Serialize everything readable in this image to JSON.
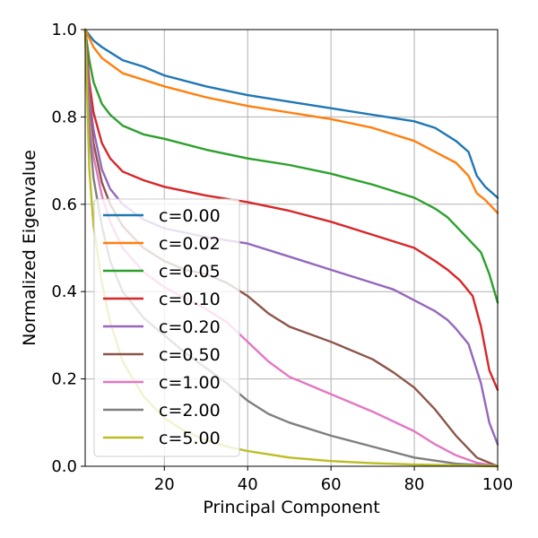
{
  "chart_data": {
    "type": "line",
    "xlabel": "Principal Component",
    "ylabel": "Normalized Eigenvalue",
    "xlim": [
      1,
      100
    ],
    "ylim": [
      0,
      1
    ],
    "xticks": [
      20,
      40,
      60,
      80,
      100
    ],
    "yticks": [
      0.0,
      0.2,
      0.4,
      0.6,
      0.8,
      1.0
    ],
    "xtick_labels": [
      "20",
      "40",
      "60",
      "80",
      "100"
    ],
    "ytick_labels": [
      "0.0",
      "0.2",
      "0.4",
      "0.6",
      "0.8",
      "1.0"
    ],
    "grid": true,
    "legend_position": "lower-left",
    "series": [
      {
        "name": "c=0.00",
        "color": "#1f77b4",
        "x": [
          1,
          3,
          5,
          10,
          15,
          20,
          30,
          40,
          50,
          60,
          70,
          80,
          85,
          90,
          93,
          95,
          97,
          100
        ],
        "y": [
          1.0,
          0.975,
          0.96,
          0.93,
          0.915,
          0.895,
          0.87,
          0.85,
          0.835,
          0.82,
          0.805,
          0.79,
          0.775,
          0.745,
          0.72,
          0.665,
          0.64,
          0.615
        ]
      },
      {
        "name": "c=0.02",
        "color": "#ff7f0e",
        "x": [
          1,
          3,
          5,
          10,
          15,
          20,
          30,
          40,
          50,
          60,
          70,
          80,
          85,
          90,
          93,
          95,
          97,
          100
        ],
        "y": [
          1.0,
          0.96,
          0.935,
          0.9,
          0.885,
          0.87,
          0.845,
          0.825,
          0.81,
          0.795,
          0.775,
          0.745,
          0.72,
          0.695,
          0.665,
          0.625,
          0.61,
          0.58
        ]
      },
      {
        "name": "c=0.05",
        "color": "#2ca02c",
        "x": [
          1,
          2,
          3,
          5,
          7,
          10,
          15,
          20,
          30,
          40,
          50,
          60,
          70,
          80,
          85,
          88,
          90,
          93,
          96,
          98,
          100
        ],
        "y": [
          1.0,
          0.93,
          0.88,
          0.83,
          0.805,
          0.78,
          0.76,
          0.75,
          0.725,
          0.705,
          0.69,
          0.67,
          0.645,
          0.615,
          0.59,
          0.57,
          0.55,
          0.52,
          0.49,
          0.44,
          0.375
        ]
      },
      {
        "name": "c=0.10",
        "color": "#d62728",
        "x": [
          1,
          2,
          3,
          5,
          7,
          10,
          15,
          20,
          30,
          40,
          50,
          60,
          70,
          80,
          85,
          88,
          91,
          94,
          96,
          98,
          100
        ],
        "y": [
          1.0,
          0.88,
          0.81,
          0.74,
          0.705,
          0.675,
          0.655,
          0.64,
          0.62,
          0.605,
          0.585,
          0.56,
          0.53,
          0.5,
          0.47,
          0.45,
          0.425,
          0.39,
          0.32,
          0.22,
          0.175
        ]
      },
      {
        "name": "c=0.20",
        "color": "#9467bd",
        "x": [
          1,
          2,
          3,
          5,
          7,
          10,
          15,
          20,
          25,
          30,
          40,
          50,
          60,
          70,
          75,
          80,
          85,
          88,
          90,
          93,
          96,
          98,
          100
        ],
        "y": [
          1.0,
          0.85,
          0.77,
          0.68,
          0.635,
          0.6,
          0.565,
          0.545,
          0.535,
          0.525,
          0.51,
          0.48,
          0.45,
          0.42,
          0.405,
          0.38,
          0.355,
          0.335,
          0.315,
          0.28,
          0.19,
          0.1,
          0.05
        ]
      },
      {
        "name": "c=0.50",
        "color": "#8c564b",
        "x": [
          1,
          2,
          3,
          5,
          7,
          10,
          15,
          20,
          25,
          30,
          35,
          40,
          45,
          50,
          60,
          70,
          75,
          80,
          85,
          90,
          95,
          100
        ],
        "y": [
          1.0,
          0.82,
          0.74,
          0.65,
          0.6,
          0.55,
          0.5,
          0.47,
          0.45,
          0.44,
          0.42,
          0.39,
          0.35,
          0.32,
          0.285,
          0.245,
          0.215,
          0.18,
          0.13,
          0.07,
          0.02,
          0.0
        ]
      },
      {
        "name": "c=1.00",
        "color": "#e377c2",
        "x": [
          1,
          2,
          3,
          5,
          7,
          10,
          15,
          20,
          25,
          30,
          35,
          40,
          45,
          50,
          55,
          60,
          70,
          80,
          85,
          90,
          95,
          100
        ],
        "y": [
          1.0,
          0.8,
          0.71,
          0.62,
          0.56,
          0.5,
          0.445,
          0.41,
          0.385,
          0.36,
          0.33,
          0.285,
          0.24,
          0.205,
          0.185,
          0.165,
          0.125,
          0.08,
          0.05,
          0.025,
          0.008,
          0.0
        ]
      },
      {
        "name": "c=2.00",
        "color": "#7f7f7f",
        "x": [
          1,
          2,
          3,
          5,
          7,
          10,
          15,
          20,
          25,
          30,
          35,
          40,
          45,
          50,
          60,
          70,
          80,
          90,
          100
        ],
        "y": [
          1.0,
          0.77,
          0.66,
          0.55,
          0.47,
          0.4,
          0.34,
          0.3,
          0.26,
          0.225,
          0.19,
          0.15,
          0.12,
          0.1,
          0.07,
          0.045,
          0.02,
          0.006,
          0.0
        ]
      },
      {
        "name": "c=5.00",
        "color": "#bcbd22",
        "x": [
          1,
          2,
          3,
          5,
          7,
          10,
          15,
          20,
          25,
          30,
          35,
          40,
          50,
          60,
          70,
          80,
          90,
          100
        ],
        "y": [
          1.0,
          0.68,
          0.55,
          0.42,
          0.33,
          0.24,
          0.16,
          0.11,
          0.08,
          0.06,
          0.045,
          0.035,
          0.02,
          0.012,
          0.007,
          0.004,
          0.002,
          0.0
        ]
      }
    ]
  }
}
